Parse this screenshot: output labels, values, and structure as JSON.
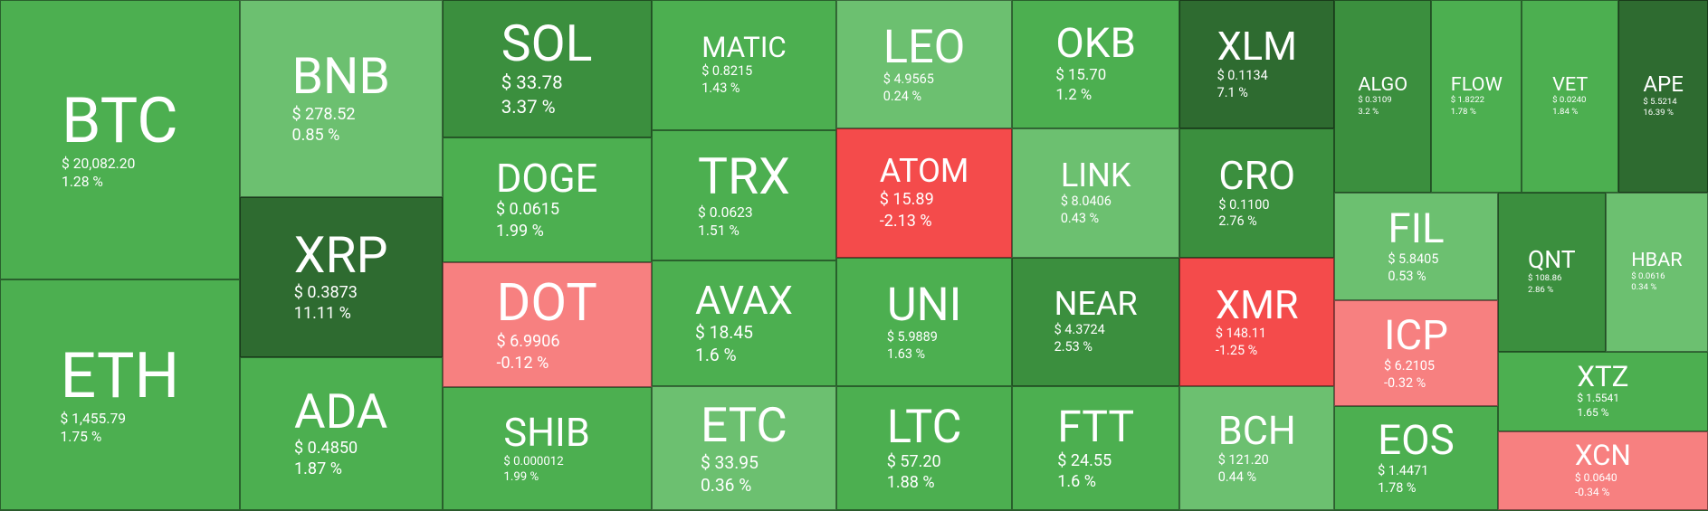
{
  "tiles": [
    {
      "symbol": "BTC",
      "price": "$ 20,082.20",
      "change": "1.28 %",
      "color": "#4caf50"
    },
    {
      "symbol": "ETH",
      "price": "$ 1,455.79",
      "change": "1.75 %",
      "color": "#4caf50"
    },
    {
      "symbol": "BNB",
      "price": "$ 278.52",
      "change": "0.85 %",
      "color": "#6cc070"
    },
    {
      "symbol": "XRP",
      "price": "$ 0.3873",
      "change": "11.11 %",
      "color": "#2e6b30"
    },
    {
      "symbol": "ADA",
      "price": "$ 0.4850",
      "change": "1.87 %",
      "color": "#4caf50"
    },
    {
      "symbol": "SOL",
      "price": "$ 33.78",
      "change": "3.37 %",
      "color": "#3b8f3e"
    },
    {
      "symbol": "DOGE",
      "price": "$ 0.0615",
      "change": "1.99 %",
      "color": "#4caf50"
    },
    {
      "symbol": "DOT",
      "price": "$ 6.9906",
      "change": "-0.12 %",
      "color": "#f78080"
    },
    {
      "symbol": "SHIB",
      "price": "$ 0.000012",
      "change": "1.99 %",
      "color": "#4caf50"
    },
    {
      "symbol": "MATIC",
      "price": "$ 0.8215",
      "change": "1.43 %",
      "color": "#4caf50"
    },
    {
      "symbol": "TRX",
      "price": "$ 0.0623",
      "change": "1.51 %",
      "color": "#4caf50"
    },
    {
      "symbol": "AVAX",
      "price": "$ 18.45",
      "change": "1.6 %",
      "color": "#4caf50"
    },
    {
      "symbol": "ETC",
      "price": "$ 33.95",
      "change": "0.36 %",
      "color": "#6cc070"
    },
    {
      "symbol": "LEO",
      "price": "$ 4.9565",
      "change": "0.24 %",
      "color": "#6cc070"
    },
    {
      "symbol": "ATOM",
      "price": "$ 15.89",
      "change": "-2.13 %",
      "color": "#f44b4b"
    },
    {
      "symbol": "UNI",
      "price": "$ 5.9889",
      "change": "1.63 %",
      "color": "#4caf50"
    },
    {
      "symbol": "LTC",
      "price": "$ 57.20",
      "change": "1.88 %",
      "color": "#4caf50"
    },
    {
      "symbol": "OKB",
      "price": "$ 15.70",
      "change": "1.2 %",
      "color": "#4caf50"
    },
    {
      "symbol": "LINK",
      "price": "$ 8.0406",
      "change": "0.43 %",
      "color": "#6cc070"
    },
    {
      "symbol": "NEAR",
      "price": "$ 4.3724",
      "change": "2.53 %",
      "color": "#3b8f3e"
    },
    {
      "symbol": "FTT",
      "price": "$ 24.55",
      "change": "1.6 %",
      "color": "#4caf50"
    },
    {
      "symbol": "XLM",
      "price": "$ 0.1134",
      "change": "7.1 %",
      "color": "#2e6b30"
    },
    {
      "symbol": "CRO",
      "price": "$ 0.1100",
      "change": "2.76 %",
      "color": "#3b8f3e"
    },
    {
      "symbol": "XMR",
      "price": "$ 148.11",
      "change": "-1.25 %",
      "color": "#f44b4b"
    },
    {
      "symbol": "BCH",
      "price": "$ 121.20",
      "change": "0.44 %",
      "color": "#6cc070"
    },
    {
      "symbol": "ALGO",
      "price": "$ 0.3109",
      "change": "3.2 %",
      "color": "#3b8f3e"
    },
    {
      "symbol": "FLOW",
      "price": "$ 1.8222",
      "change": "1.78 %",
      "color": "#4caf50"
    },
    {
      "symbol": "VET",
      "price": "$ 0.0240",
      "change": "1.84 %",
      "color": "#4caf50"
    },
    {
      "symbol": "APE",
      "price": "$ 5.5214",
      "change": "16.39 %",
      "color": "#2e6b30"
    },
    {
      "symbol": "FIL",
      "price": "$ 5.8405",
      "change": "0.53 %",
      "color": "#6cc070"
    },
    {
      "symbol": "ICP",
      "price": "$ 6.2105",
      "change": "-0.32 %",
      "color": "#f78080"
    },
    {
      "symbol": "EOS",
      "price": "$ 1.4471",
      "change": "1.78 %",
      "color": "#4caf50"
    },
    {
      "symbol": "QNT",
      "price": "$ 108.86",
      "change": "2.86 %",
      "color": "#3b8f3e"
    },
    {
      "symbol": "HBAR",
      "price": "$ 0.0616",
      "change": "0.34 %",
      "color": "#6cc070"
    },
    {
      "symbol": "XTZ",
      "price": "$ 1.5541",
      "change": "1.65 %",
      "color": "#4caf50"
    },
    {
      "symbol": "XCN",
      "price": "$ 0.0640",
      "change": "-0.34 %",
      "color": "#f78080"
    }
  ]
}
